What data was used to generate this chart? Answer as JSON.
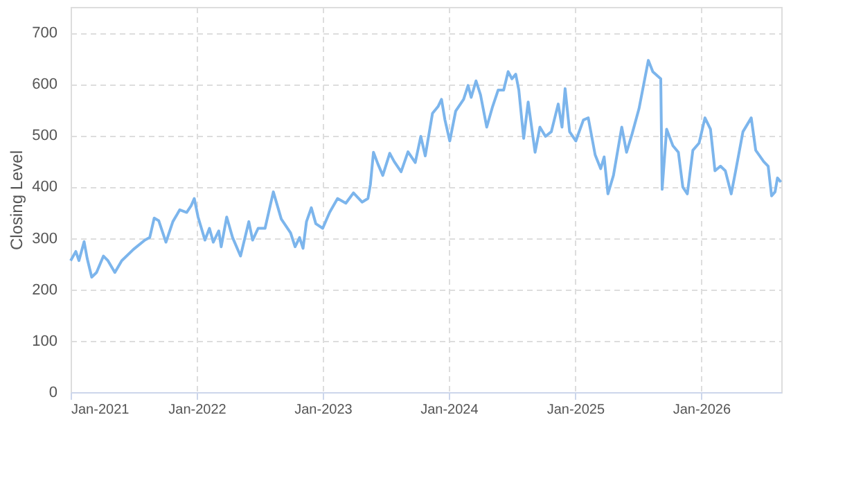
{
  "chart_data": {
    "type": "line",
    "ylabel": "Closing Level",
    "grid": true,
    "line_style": "solid",
    "marker": "none",
    "xlim": [
      "2021-01-01",
      "2026-08-21"
    ],
    "ylim": [
      0,
      750
    ],
    "yticks": [
      0,
      100,
      200,
      300,
      400,
      500,
      600,
      700
    ],
    "xticks": [
      {
        "value": "2021-01-01",
        "label": "Jan-2021"
      },
      {
        "value": "2022-01-01",
        "label": "Jan-2022"
      },
      {
        "value": "2023-01-01",
        "label": "Jan-2023"
      },
      {
        "value": "2024-01-01",
        "label": "Jan-2024"
      },
      {
        "value": "2025-01-01",
        "label": "Jan-2025"
      },
      {
        "value": "2026-01-01",
        "label": "Jan-2026"
      }
    ],
    "x": [
      "2021-01-01",
      "2021-01-16",
      "2021-01-25",
      "2021-02-09",
      "2021-02-18",
      "2021-03-03",
      "2021-03-17",
      "2021-04-06",
      "2021-04-19",
      "2021-05-09",
      "2021-05-29",
      "2021-07-02",
      "2021-08-04",
      "2021-08-18",
      "2021-08-31",
      "2021-09-13",
      "2021-10-04",
      "2021-10-24",
      "2021-11-13",
      "2021-12-03",
      "2021-12-16",
      "2021-12-25",
      "2022-01-05",
      "2022-01-25",
      "2022-02-07",
      "2022-02-18",
      "2022-03-06",
      "2022-03-13",
      "2022-03-29",
      "2022-04-15",
      "2022-05-08",
      "2022-06-01",
      "2022-06-12",
      "2022-06-28",
      "2022-07-18",
      "2022-08-11",
      "2022-09-03",
      "2022-09-30",
      "2022-10-13",
      "2022-10-26",
      "2022-11-05",
      "2022-11-15",
      "2022-11-29",
      "2022-12-12",
      "2023-01-01",
      "2023-01-21",
      "2023-02-13",
      "2023-03-09",
      "2023-03-31",
      "2023-04-25",
      "2023-05-12",
      "2023-05-19",
      "2023-05-28",
      "2023-06-10",
      "2023-06-24",
      "2023-07-14",
      "2023-07-27",
      "2023-08-16",
      "2023-09-05",
      "2023-09-26",
      "2023-10-12",
      "2023-10-25",
      "2023-11-15",
      "2023-12-01",
      "2023-12-11",
      "2023-12-21",
      "2024-01-04",
      "2024-01-21",
      "2024-02-13",
      "2024-02-26",
      "2024-03-06",
      "2024-03-20",
      "2024-04-02",
      "2024-04-20",
      "2024-05-07",
      "2024-05-23",
      "2024-06-08",
      "2024-06-21",
      "2024-07-02",
      "2024-07-13",
      "2024-07-22",
      "2024-08-05",
      "2024-08-18",
      "2024-09-07",
      "2024-09-21",
      "2024-10-07",
      "2024-10-24",
      "2024-11-13",
      "2024-11-24",
      "2024-12-03",
      "2024-12-16",
      "2025-01-03",
      "2025-01-25",
      "2025-02-08",
      "2025-02-28",
      "2025-03-16",
      "2025-03-26",
      "2025-04-06",
      "2025-04-22",
      "2025-05-16",
      "2025-05-30",
      "2025-06-15",
      "2025-07-05",
      "2025-08-01",
      "2025-08-14",
      "2025-09-06",
      "2025-09-10",
      "2025-09-23",
      "2025-10-11",
      "2025-10-27",
      "2025-11-09",
      "2025-11-22",
      "2025-12-08",
      "2025-12-26",
      "2026-01-12",
      "2026-01-28",
      "2026-02-10",
      "2026-02-26",
      "2026-03-12",
      "2026-03-29",
      "2026-04-11",
      "2026-05-02",
      "2026-05-26",
      "2026-06-08",
      "2026-07-01",
      "2026-07-14",
      "2026-07-24",
      "2026-08-03",
      "2026-08-10",
      "2026-08-20"
    ],
    "series": [
      {
        "color": "#7cb5ec",
        "values": [
          256,
          274,
          256,
          293,
          260,
          224,
          233,
          265,
          256,
          233,
          256,
          278,
          296,
          301,
          339,
          334,
          292,
          332,
          355,
          350,
          363,
          377,
          341,
          296,
          319,
          292,
          314,
          283,
          341,
          301,
          265,
          332,
          296,
          319,
          319,
          390,
          337,
          310,
          283,
          301,
          280,
          332,
          359,
          328,
          319,
          350,
          377,
          368,
          388,
          370,
          377,
          404,
          467,
          444,
          422,
          465,
          449,
          429,
          468,
          447,
          498,
          460,
          543,
          556,
          570,
          530,
          489,
          547,
          570,
          597,
          574,
          606,
          579,
          516,
          556,
          588,
          588,
          624,
          610,
          619,
          588,
          494,
          565,
          467,
          516,
          498,
          507,
          561,
          516,
          591,
          507,
          489,
          530,
          534,
          462,
          435,
          458,
          386,
          422,
          516,
          467,
          503,
          552,
          646,
          624,
          610,
          395,
          512,
          480,
          467,
          399,
          386,
          471,
          485,
          534,
          512,
          431,
          440,
          431,
          386,
          431,
          507,
          534,
          471,
          449,
          440,
          382,
          390,
          417,
          409
        ]
      }
    ]
  }
}
